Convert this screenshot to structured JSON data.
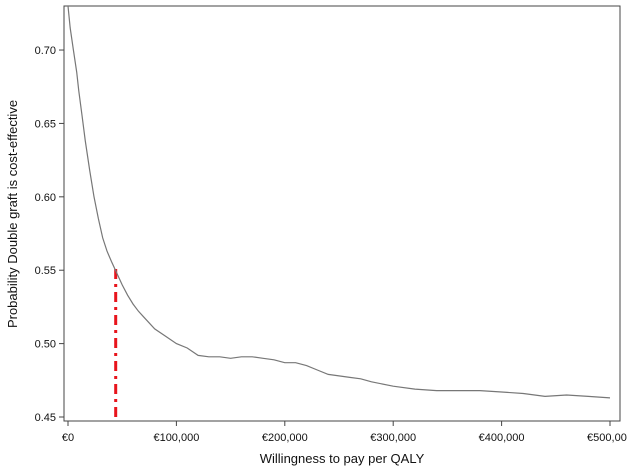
{
  "chart_data": {
    "type": "line",
    "title": "",
    "xlabel": "Willingness to pay per QALY",
    "ylabel": "Probability Double graft is cost-effective",
    "xlim": [
      0,
      500000
    ],
    "ylim": [
      0.45,
      0.73
    ],
    "grid": false,
    "legend": "none",
    "x_ticks": [
      {
        "value": 0,
        "label": "€0"
      },
      {
        "value": 100000,
        "label": "€100,000"
      },
      {
        "value": 200000,
        "label": "€200,000"
      },
      {
        "value": 300000,
        "label": "€300,000"
      },
      {
        "value": 400000,
        "label": "€400,000"
      },
      {
        "value": 500000,
        "label": "€500,000"
      }
    ],
    "y_ticks": [
      {
        "value": 0.45,
        "label": "0.45"
      },
      {
        "value": 0.5,
        "label": "0.50"
      },
      {
        "value": 0.55,
        "label": "0.55"
      },
      {
        "value": 0.6,
        "label": "0.60"
      },
      {
        "value": 0.65,
        "label": "0.65"
      },
      {
        "value": 0.7,
        "label": "0.70"
      }
    ],
    "series": [
      {
        "color": "#777777",
        "x": [
          0,
          2000,
          5000,
          8000,
          10000,
          13000,
          16000,
          20000,
          24000,
          28000,
          32000,
          36000,
          40000,
          45000,
          50000,
          55000,
          60000,
          65000,
          70000,
          80000,
          90000,
          100000,
          110000,
          120000,
          130000,
          140000,
          150000,
          160000,
          170000,
          180000,
          190000,
          200000,
          210000,
          220000,
          230000,
          240000,
          250000,
          260000,
          270000,
          280000,
          300000,
          320000,
          340000,
          360000,
          380000,
          400000,
          420000,
          440000,
          460000,
          480000,
          500000
        ],
        "y": [
          0.73,
          0.715,
          0.7,
          0.685,
          0.672,
          0.655,
          0.638,
          0.618,
          0.6,
          0.585,
          0.572,
          0.563,
          0.556,
          0.548,
          0.54,
          0.533,
          0.527,
          0.522,
          0.518,
          0.51,
          0.505,
          0.5,
          0.497,
          0.492,
          0.491,
          0.491,
          0.49,
          0.491,
          0.491,
          0.49,
          0.489,
          0.487,
          0.487,
          0.485,
          0.482,
          0.479,
          0.478,
          0.477,
          0.476,
          0.474,
          0.471,
          0.469,
          0.468,
          0.468,
          0.468,
          0.467,
          0.466,
          0.464,
          0.465,
          0.464,
          0.463
        ]
      }
    ],
    "reference_line": {
      "color": "#e8141c",
      "style": "dash-dot",
      "x": 44000,
      "y_from": 0.45,
      "y_to": 0.553
    }
  }
}
